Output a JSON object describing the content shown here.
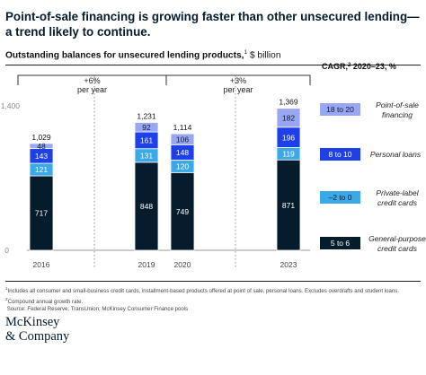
{
  "header": {
    "title": "Point-of-sale financing is growing faster than other unsecured lending—a trend likely to continue.",
    "subtitle_bold": "Outstanding balances for unsecured lending products,",
    "subtitle_sup": "1",
    "subtitle_unit": " $ billion"
  },
  "chart_data": {
    "type": "bar",
    "stacked": true,
    "categories": [
      "2016",
      "2019",
      "2020",
      "2023"
    ],
    "series": [
      {
        "name": "General-purpose credit cards",
        "color": "#051c2c",
        "values": [
          717,
          848,
          749,
          871
        ]
      },
      {
        "name": "Private-label credit cards",
        "color": "#3ba9e8",
        "values": [
          121,
          131,
          120,
          119
        ]
      },
      {
        "name": "Personal loans",
        "color": "#1f40e6",
        "values": [
          143,
          161,
          148,
          196
        ]
      },
      {
        "name": "Point-of-sale financing",
        "color": "#99a6f4",
        "values": [
          48,
          92,
          106,
          182
        ]
      }
    ],
    "totals": [
      "1,029",
      "1,231",
      "1,114",
      "1,369"
    ],
    "ylim": [
      0,
      1400
    ],
    "ytick_labels": [
      "0",
      "1,400"
    ],
    "growth_annotations": [
      {
        "value": "+6%",
        "label": "per year"
      },
      {
        "value": "+3%",
        "label": "per year"
      }
    ],
    "cagr_header": "CAGR,",
    "cagr_header_sup": "2",
    "cagr_header_rest": " 2020–23, %",
    "cagr": [
      {
        "range": "18 to 20",
        "label": "Point-of-sale financing",
        "color": "#99a6f4",
        "text_color": "#051c2c"
      },
      {
        "range": "8 to 10",
        "label": "Personal loans",
        "color": "#1f40e6",
        "text_color": "#ffffff"
      },
      {
        "range": "–2 to 0",
        "label": "Private-label credit cards",
        "color": "#3ba9e8",
        "text_color": "#051c2c"
      },
      {
        "range": "5 to 6",
        "label": "General-purpose credit cards",
        "color": "#051c2c",
        "text_color": "#ffffff"
      }
    ]
  },
  "footnotes": {
    "note1_sup": "1",
    "note1": "Includes all consumer and small-business credit cards, installment-based products offered at point of sale, personal loans. Excludes overdrafts and student loans.",
    "note2_sup": "2",
    "note2": "Compound annual growth rate.",
    "source": "Source: Federal Reserve; TransUnion; McKinsey Consumer Finance pools"
  },
  "brand": {
    "logo_line1": "McKinsey",
    "logo_line2": "& Company"
  }
}
